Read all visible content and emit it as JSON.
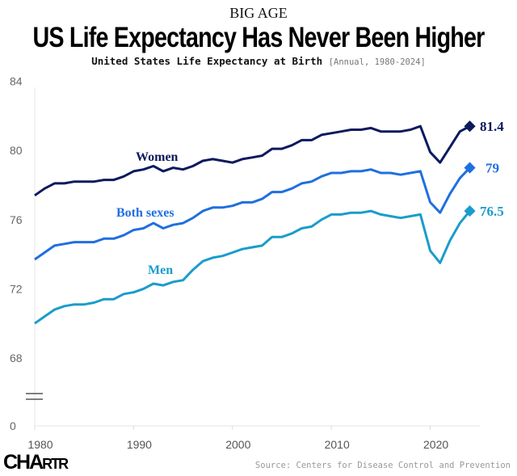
{
  "header": {
    "kicker": "BIG AGE",
    "title": "US Life Expectancy Has Never Been Higher",
    "subtitle": "United States Life Expectancy at Birth",
    "subtitle_note": "[Annual, 1980-2024]"
  },
  "footer": {
    "logo": "CHARTR",
    "source": "Source: Centers for Disease Control and Prevention"
  },
  "chart_data": {
    "type": "line",
    "title": "United States Life Expectancy at Birth",
    "x": [
      1980,
      1981,
      1982,
      1983,
      1984,
      1985,
      1986,
      1987,
      1988,
      1989,
      1990,
      1991,
      1992,
      1993,
      1994,
      1995,
      1996,
      1997,
      1998,
      1999,
      2000,
      2001,
      2002,
      2003,
      2004,
      2005,
      2006,
      2007,
      2008,
      2009,
      2010,
      2011,
      2012,
      2013,
      2014,
      2015,
      2016,
      2017,
      2018,
      2019,
      2020,
      2021,
      2022,
      2023,
      2024
    ],
    "xticks": [
      "1980",
      "1990",
      "2000",
      "2010",
      "2020"
    ],
    "yticks": [
      "0",
      "68",
      "72",
      "76",
      "80",
      "84"
    ],
    "ylim": [
      68,
      84
    ],
    "y_axis_break": true,
    "grid": false,
    "series": [
      {
        "name": "Women",
        "color": "#0c1a5e",
        "end_label": "81.4",
        "values": [
          77.4,
          77.8,
          78.1,
          78.1,
          78.2,
          78.2,
          78.2,
          78.3,
          78.3,
          78.5,
          78.8,
          78.9,
          79.1,
          78.8,
          79.0,
          78.9,
          79.1,
          79.4,
          79.5,
          79.4,
          79.3,
          79.5,
          79.6,
          79.7,
          80.1,
          80.1,
          80.3,
          80.6,
          80.6,
          80.9,
          81.0,
          81.1,
          81.2,
          81.2,
          81.3,
          81.1,
          81.1,
          81.1,
          81.2,
          81.4,
          79.9,
          79.3,
          80.2,
          81.1,
          81.4
        ]
      },
      {
        "name": "Both sexes",
        "color": "#1f6fe0",
        "end_label": "79",
        "values": [
          73.7,
          74.1,
          74.5,
          74.6,
          74.7,
          74.7,
          74.7,
          74.9,
          74.9,
          75.1,
          75.4,
          75.5,
          75.8,
          75.5,
          75.7,
          75.8,
          76.1,
          76.5,
          76.7,
          76.7,
          76.8,
          77.0,
          77.0,
          77.2,
          77.6,
          77.6,
          77.8,
          78.1,
          78.2,
          78.5,
          78.7,
          78.7,
          78.8,
          78.8,
          78.9,
          78.7,
          78.7,
          78.6,
          78.7,
          78.8,
          77.0,
          76.4,
          77.5,
          78.4,
          79.0
        ]
      },
      {
        "name": "Men",
        "color": "#1a9ccc",
        "end_label": "76.5",
        "values": [
          70.0,
          70.4,
          70.8,
          71.0,
          71.1,
          71.1,
          71.2,
          71.4,
          71.4,
          71.7,
          71.8,
          72.0,
          72.3,
          72.2,
          72.4,
          72.5,
          73.1,
          73.6,
          73.8,
          73.9,
          74.1,
          74.3,
          74.4,
          74.5,
          75.0,
          75.0,
          75.2,
          75.5,
          75.6,
          76.0,
          76.3,
          76.3,
          76.4,
          76.4,
          76.5,
          76.3,
          76.2,
          76.1,
          76.2,
          76.3,
          74.2,
          73.5,
          74.8,
          75.8,
          76.5
        ]
      }
    ]
  }
}
